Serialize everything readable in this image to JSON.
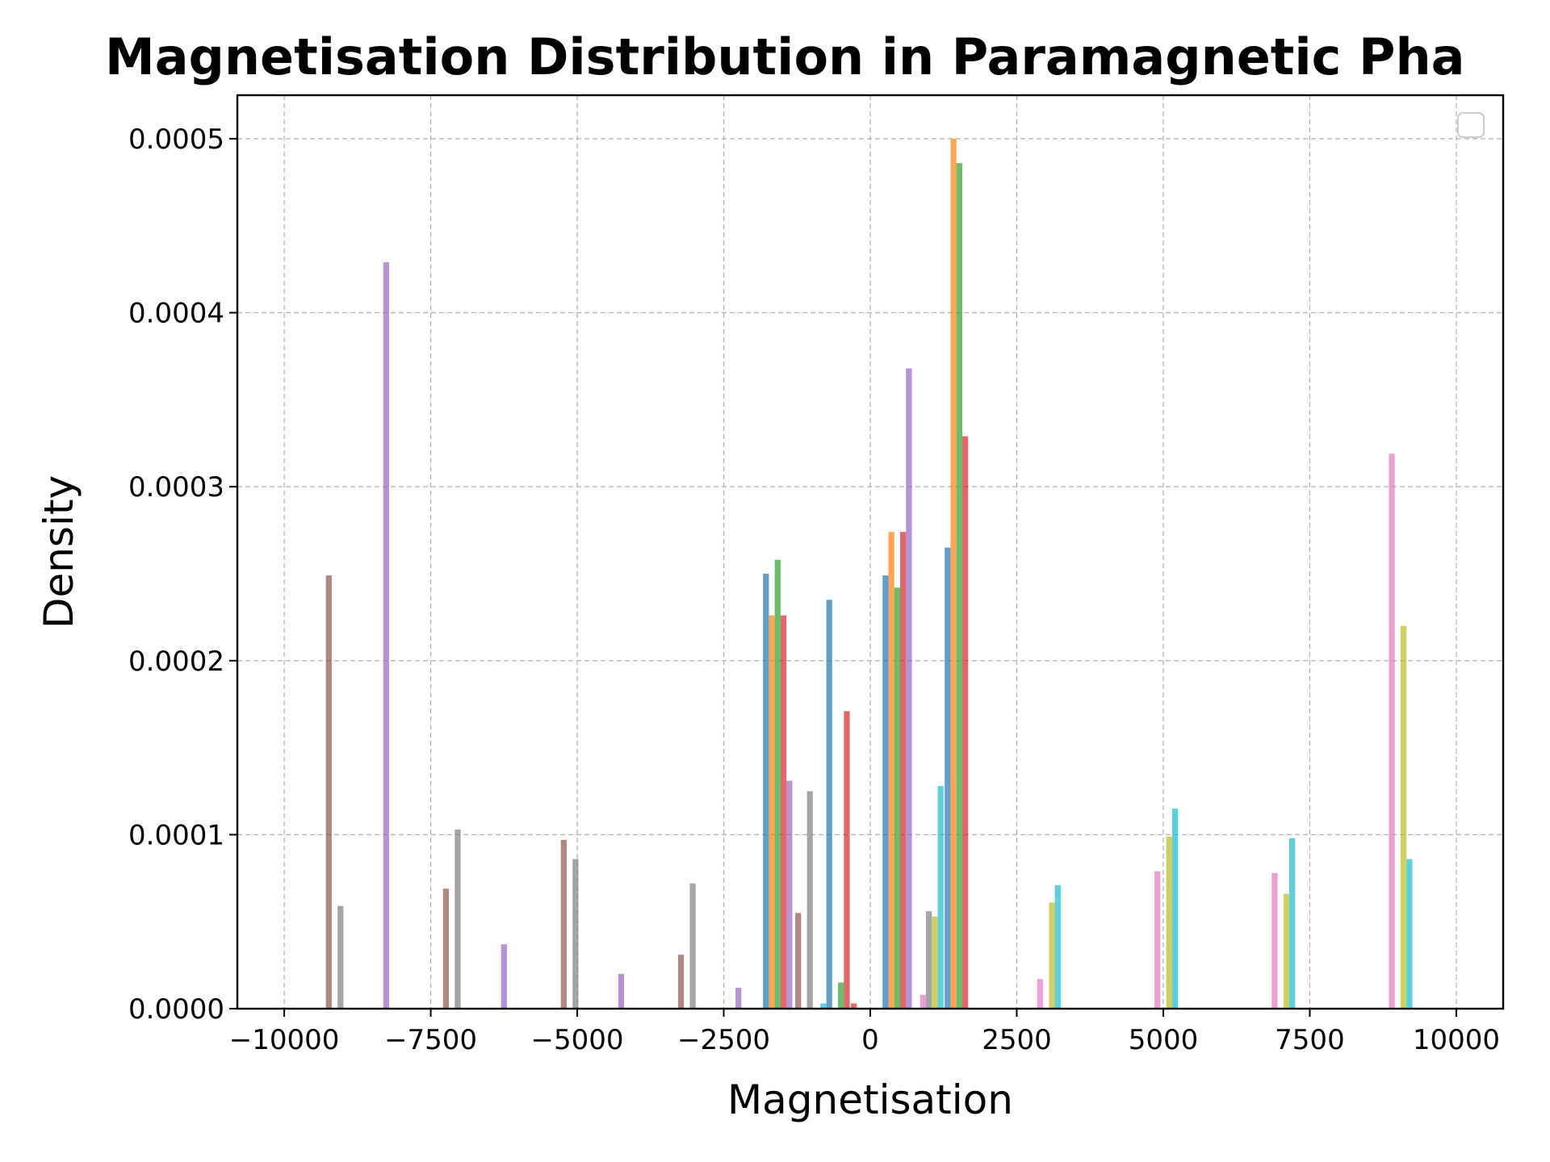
{
  "chart_data": {
    "type": "bar",
    "title": "Magnetisation Distribution in Paramagnetic Pha",
    "xlabel": "Magnetisation",
    "ylabel": "Density",
    "xlim": [
      -10800,
      10800
    ],
    "ylim": [
      0,
      0.000525
    ],
    "xticks": [
      -10000,
      -7500,
      -5000,
      -2500,
      0,
      2500,
      5000,
      7500,
      10000
    ],
    "xtick_labels": [
      "−10000",
      "−7500",
      "−5000",
      "−2500",
      "0",
      "2500",
      "5000",
      "7500",
      "10000"
    ],
    "yticks": [
      0,
      0.0001,
      0.0002,
      0.0003,
      0.0004,
      0.0005
    ],
    "ytick_labels": [
      "0.0000",
      "0.0001",
      "0.0002",
      "0.0003",
      "0.0004",
      "0.0005"
    ],
    "grid": true,
    "legend": "top-right (empty)",
    "bar_width": 100,
    "series": [
      {
        "color": "#1f77b4",
        "bars": [
          [
            -1780,
            0.00025
          ],
          [
            -700,
            0.000235
          ],
          [
            260,
            0.000249
          ],
          [
            1320,
            0.000265
          ]
        ]
      },
      {
        "color": "#ff7f0e",
        "bars": [
          [
            -1680,
            0.000226
          ],
          [
            360,
            0.000274
          ],
          [
            1420,
            0.0005
          ]
        ]
      },
      {
        "color": "#2ca02c",
        "bars": [
          [
            -1580,
            0.000258
          ],
          [
            -500,
            1.5e-05
          ],
          [
            460,
            0.000242
          ],
          [
            1520,
            0.000486
          ]
        ]
      },
      {
        "color": "#d62728",
        "bars": [
          [
            -1480,
            0.000226
          ],
          [
            -400,
            0.000171
          ],
          [
            -280,
            3e-06
          ],
          [
            560,
            0.000274
          ],
          [
            1620,
            0.000329
          ]
        ]
      },
      {
        "color": "#9467bd",
        "bars": [
          [
            -8260,
            0.000429
          ],
          [
            -6250,
            3.7e-05
          ],
          [
            -4250,
            2e-05
          ],
          [
            -2250,
            1.2e-05
          ],
          [
            -1380,
            0.000131
          ],
          [
            660,
            0.000368
          ]
        ]
      },
      {
        "color": "#8c564b",
        "bars": [
          [
            -9240,
            0.000249
          ],
          [
            -7240,
            6.9e-05
          ],
          [
            -5230,
            9.7e-05
          ],
          [
            -3230,
            3.1e-05
          ],
          [
            -1230,
            5.5e-05
          ]
        ]
      },
      {
        "color": "#e377c2",
        "bars": [
          [
            900,
            8e-06
          ],
          [
            2900,
            1.7e-05
          ],
          [
            4900,
            7.9e-05
          ],
          [
            6900,
            7.8e-05
          ],
          [
            8900,
            0.000319
          ]
        ]
      },
      {
        "color": "#7f7f7f",
        "bars": [
          [
            -9040,
            5.9e-05
          ],
          [
            -7040,
            0.000103
          ],
          [
            -5030,
            8.6e-05
          ],
          [
            -3030,
            7.2e-05
          ],
          [
            -1030,
            0.000125
          ],
          [
            1000,
            5.6e-05
          ]
        ]
      },
      {
        "color": "#bcbd22",
        "bars": [
          [
            1100,
            5.3e-05
          ],
          [
            3100,
            6.1e-05
          ],
          [
            5100,
            9.9e-05
          ],
          [
            7100,
            6.6e-05
          ],
          [
            9100,
            0.00022
          ]
        ]
      },
      {
        "color": "#17becf",
        "bars": [
          [
            -800,
            3e-06
          ],
          [
            1200,
            0.000128
          ],
          [
            3200,
            7.1e-05
          ],
          [
            5200,
            0.000115
          ],
          [
            7200,
            9.8e-05
          ],
          [
            9200,
            8.6e-05
          ]
        ]
      }
    ]
  }
}
